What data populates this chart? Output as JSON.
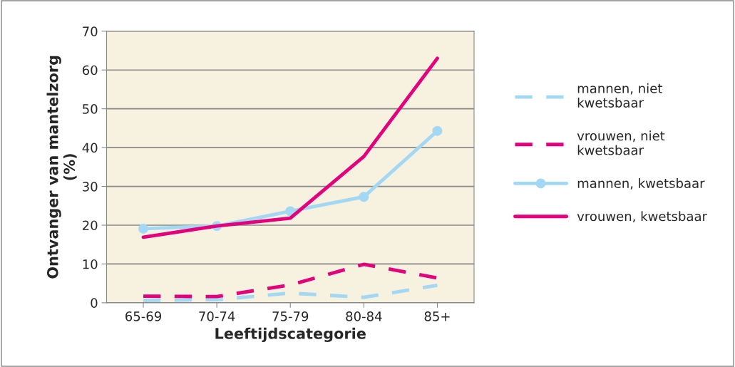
{
  "chart_data": {
    "type": "line",
    "xlabel": "Leeftijdscategorie",
    "ylabel": "Ontvanger van mantelzorg\n(%)",
    "categories": [
      "65-69",
      "70-74",
      "75-79",
      "80-84",
      "85+"
    ],
    "series": [
      {
        "name": "mannen, niet\nkwetsbaar",
        "color": "#a3d8f4",
        "line_style": "dashed",
        "marker": "none",
        "values": [
          0.6,
          0.8,
          2.5,
          1.4,
          4.5
        ]
      },
      {
        "name": "vrouwen, niet\nkwetsbaar",
        "color": "#e4007c",
        "line_style": "dashed",
        "marker": "none",
        "values": [
          1.7,
          1.6,
          4.6,
          9.9,
          6.4
        ]
      },
      {
        "name": "mannen, kwetsbaar",
        "color": "#a3d8f4",
        "line_style": "solid",
        "marker": "circle",
        "values": [
          19.1,
          19.8,
          23.6,
          27.3,
          44.3
        ]
      },
      {
        "name": "vrouwen, kwetsbaar",
        "color": "#e4007c",
        "line_style": "solid",
        "marker": "none",
        "values": [
          16.9,
          19.8,
          21.8,
          37.7,
          63.0
        ]
      }
    ],
    "ylim": [
      0,
      70
    ],
    "yticks": [
      0,
      10,
      20,
      30,
      40,
      50,
      60,
      70
    ],
    "grid": "y",
    "legend": "right"
  }
}
